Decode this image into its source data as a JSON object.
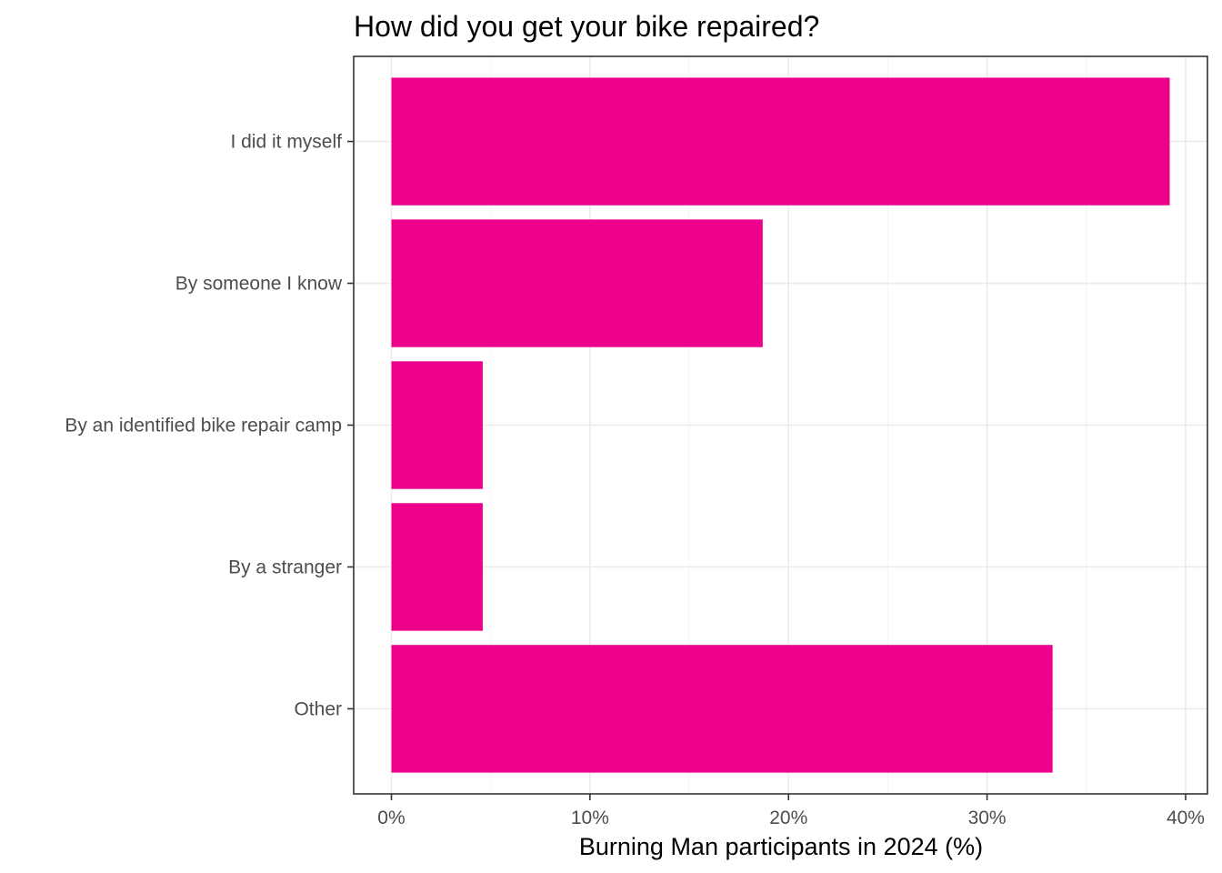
{
  "chart_data": {
    "type": "bar",
    "orientation": "horizontal",
    "title": "How did you get your bike repaired?",
    "xlabel": "Burning Man participants in 2024 (%)",
    "ylabel": "",
    "categories": [
      "I did it myself",
      "By someone I know",
      "By an identified bike repair camp",
      "By a stranger",
      "Other"
    ],
    "values": [
      39.2,
      18.7,
      4.6,
      4.6,
      33.3
    ],
    "xlim": [
      -1.9,
      41.1
    ],
    "x_ticks": [
      0,
      10,
      20,
      30,
      40
    ],
    "x_tick_labels": [
      "0%",
      "10%",
      "20%",
      "30%",
      "40%"
    ],
    "bar_color": "#EC008C",
    "grid": true,
    "legend": "none"
  }
}
